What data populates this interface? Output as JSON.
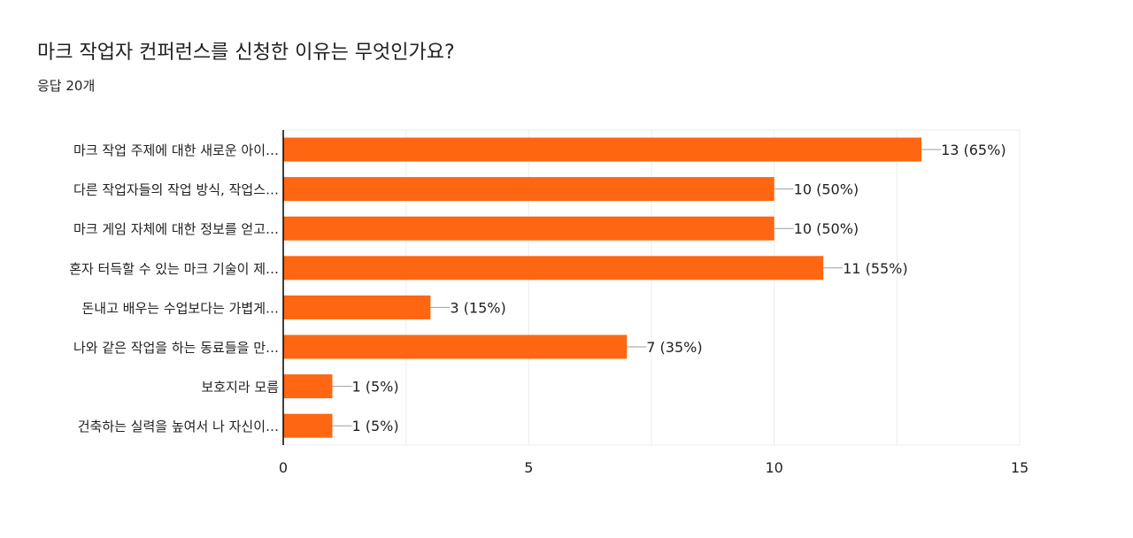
{
  "form": {
    "question": "마크 작업자 컨퍼런스를 신청한 이유는 무엇인가요?",
    "response_count": "응답 20개"
  },
  "colors": {
    "bar": "#ff6611",
    "gridline": "#ececec",
    "axis": "#000000",
    "text": "#202124"
  },
  "chart_data": {
    "type": "bar",
    "orientation": "horizontal",
    "categories": [
      "마크 작업 주제에 대한 새로운 아이…",
      "다른 작업자들의 작업 방식, 작업스…",
      "마크 게임 자체에 대한 정보를 얻고…",
      "혼자 터득할 수 있는 마크 기술이 제…",
      "돈내고 배우는 수업보다는 가볍게…",
      "나와 같은 작업을 하는 동료들을 만…",
      "보호지라 모름",
      "건축하는 실력을 높여서 나 자신이…"
    ],
    "values": [
      13,
      10,
      10,
      11,
      3,
      7,
      1,
      1
    ],
    "data_labels": [
      "13 (65%)",
      "10 (50%)",
      "10 (50%)",
      "11 (55%)",
      "3 (15%)",
      "7 (35%)",
      "1 (5%)",
      "1 (5%)"
    ],
    "xlim": [
      0,
      15
    ],
    "xticks": [
      "0",
      "5",
      "10",
      "15"
    ],
    "grid": true,
    "legend": "none"
  }
}
